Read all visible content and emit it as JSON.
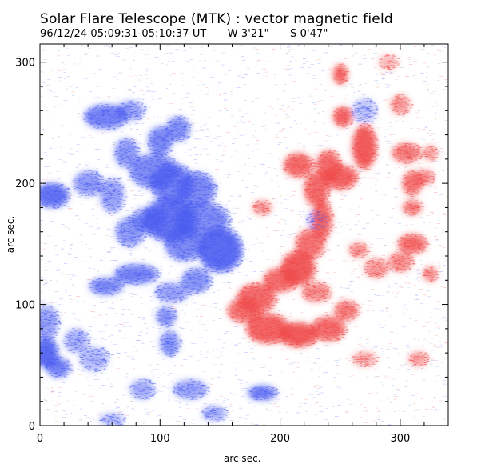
{
  "title": "Solar Flare Telescope (MTK) : vector magnetic field",
  "subtitle": {
    "datetime": "96/12/24  05:09:31-05:10:37 UT",
    "longitude": "W 3'21\"",
    "latitude": "S 0'47\""
  },
  "xlabel": "arc sec.",
  "ylabel": "arc sec.",
  "colors": {
    "negative_polarity": "#4a5cf0",
    "positive_polarity": "#f04a4a",
    "background": "#ffffff",
    "frame": "#000000"
  },
  "axes": {
    "x": {
      "range": [
        0,
        340
      ],
      "ticks": [
        0,
        100,
        200,
        300
      ]
    },
    "y": {
      "range": [
        0,
        315
      ],
      "ticks": [
        0,
        100,
        200,
        300
      ]
    }
  },
  "blobs": {
    "negative": [
      [
        10,
        190,
        14,
        10,
        0.85
      ],
      [
        40,
        200,
        12,
        10,
        0.6
      ],
      [
        55,
        255,
        18,
        10,
        0.75
      ],
      [
        75,
        260,
        12,
        8,
        0.55
      ],
      [
        100,
        235,
        10,
        12,
        0.7
      ],
      [
        115,
        245,
        10,
        10,
        0.65
      ],
      [
        72,
        225,
        10,
        12,
        0.6
      ],
      [
        95,
        210,
        20,
        14,
        0.7
      ],
      [
        110,
        200,
        18,
        16,
        0.75
      ],
      [
        130,
        195,
        16,
        14,
        0.7
      ],
      [
        108,
        170,
        22,
        18,
        0.85
      ],
      [
        135,
        170,
        22,
        14,
        0.7
      ],
      [
        150,
        145,
        18,
        18,
        0.9
      ],
      [
        120,
        150,
        16,
        14,
        0.7
      ],
      [
        90,
        170,
        14,
        10,
        0.6
      ],
      [
        60,
        190,
        10,
        14,
        0.55
      ],
      [
        75,
        160,
        12,
        12,
        0.6
      ],
      [
        80,
        125,
        18,
        8,
        0.75
      ],
      [
        55,
        115,
        14,
        7,
        0.7
      ],
      [
        130,
        120,
        12,
        10,
        0.65
      ],
      [
        110,
        110,
        14,
        8,
        0.55
      ],
      [
        105,
        90,
        8,
        8,
        0.65
      ],
      [
        108,
        68,
        8,
        10,
        0.65
      ],
      [
        5,
        60,
        10,
        12,
        0.9
      ],
      [
        15,
        48,
        10,
        8,
        0.75
      ],
      [
        5,
        85,
        10,
        14,
        0.55
      ],
      [
        30,
        70,
        10,
        10,
        0.45
      ],
      [
        45,
        55,
        12,
        10,
        0.4
      ],
      [
        85,
        30,
        10,
        8,
        0.5
      ],
      [
        125,
        30,
        14,
        8,
        0.55
      ],
      [
        185,
        27,
        12,
        6,
        0.8
      ],
      [
        145,
        10,
        10,
        6,
        0.5
      ],
      [
        60,
        5,
        10,
        5,
        0.45
      ],
      [
        270,
        260,
        10,
        10,
        0.35
      ],
      [
        230,
        170,
        8,
        8,
        0.35
      ]
    ],
    "positive": [
      [
        250,
        290,
        6,
        8,
        0.85
      ],
      [
        252,
        255,
        8,
        8,
        0.85
      ],
      [
        270,
        230,
        10,
        18,
        0.9
      ],
      [
        240,
        215,
        10,
        12,
        0.8
      ],
      [
        215,
        215,
        12,
        10,
        0.8
      ],
      [
        250,
        205,
        14,
        10,
        0.85
      ],
      [
        230,
        195,
        10,
        14,
        0.8
      ],
      [
        235,
        170,
        8,
        16,
        0.8
      ],
      [
        225,
        150,
        12,
        12,
        0.75
      ],
      [
        215,
        130,
        14,
        14,
        0.9
      ],
      [
        200,
        120,
        14,
        10,
        0.8
      ],
      [
        180,
        105,
        16,
        12,
        0.8
      ],
      [
        170,
        95,
        14,
        10,
        0.75
      ],
      [
        190,
        80,
        18,
        12,
        0.85
      ],
      [
        215,
        75,
        16,
        10,
        0.9
      ],
      [
        240,
        80,
        14,
        10,
        0.8
      ],
      [
        255,
        95,
        10,
        8,
        0.7
      ],
      [
        230,
        110,
        12,
        8,
        0.6
      ],
      [
        300,
        265,
        8,
        8,
        0.55
      ],
      [
        305,
        225,
        12,
        8,
        0.7
      ],
      [
        310,
        200,
        8,
        10,
        0.75
      ],
      [
        320,
        205,
        8,
        6,
        0.65
      ],
      [
        310,
        180,
        8,
        6,
        0.7
      ],
      [
        310,
        150,
        12,
        8,
        0.8
      ],
      [
        300,
        135,
        10,
        8,
        0.6
      ],
      [
        325,
        125,
        6,
        6,
        0.65
      ],
      [
        325,
        225,
        6,
        6,
        0.55
      ],
      [
        185,
        180,
        8,
        6,
        0.55
      ],
      [
        265,
        145,
        8,
        6,
        0.6
      ],
      [
        280,
        130,
        10,
        8,
        0.55
      ],
      [
        270,
        55,
        10,
        6,
        0.45
      ],
      [
        315,
        55,
        8,
        6,
        0.5
      ],
      [
        290,
        300,
        8,
        6,
        0.4
      ]
    ]
  }
}
